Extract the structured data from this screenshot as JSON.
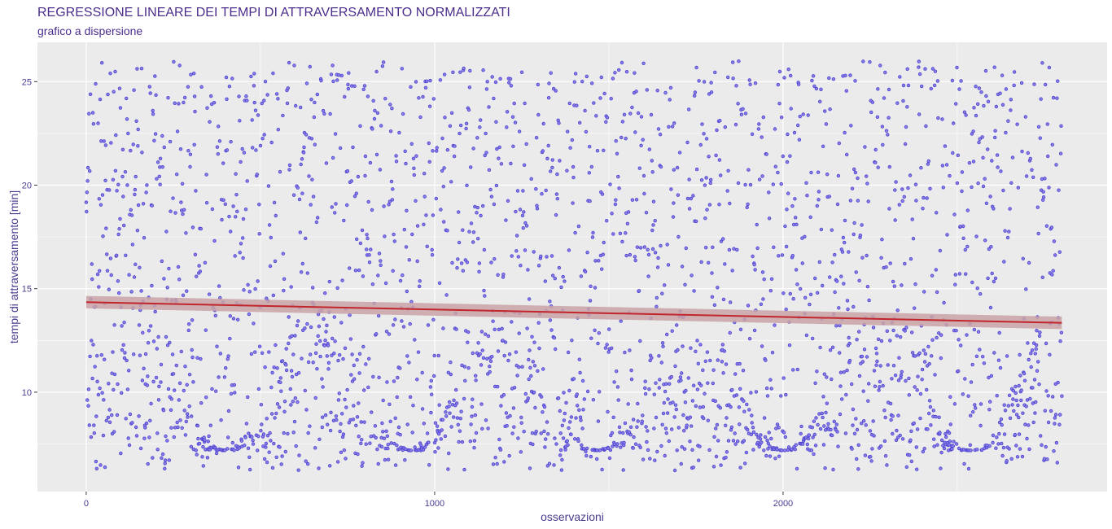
{
  "chart_data": {
    "type": "scatter",
    "title": "REGRESSIONE LINEARE DEI TEMPI DI ATTRAVERSAMENTO NORMALIZZATI",
    "subtitle": "grafico a dispersione",
    "xlabel": "osservazioni",
    "ylabel": "tempi di attraversamento [min]",
    "xlim": [
      -140,
      2930
    ],
    "ylim": [
      5.2,
      26.9
    ],
    "x_ticks": [
      0,
      1000,
      2000
    ],
    "x_tick_labels": [
      "0",
      "1000",
      "2000"
    ],
    "y_ticks": [
      10,
      15,
      20,
      25
    ],
    "y_tick_labels": [
      "10",
      "15",
      "20",
      "25"
    ],
    "grid": true,
    "legend": "none",
    "colors": {
      "panel": "#ebebeb",
      "grid": "#ffffff",
      "points": "#4b3fd1",
      "regression_line": "#c0262c",
      "confidence_band": "#c9a3a6",
      "text": "#4b3b8f"
    },
    "series": [
      {
        "kind": "points",
        "count": 2800,
        "x": [
          0,
          2800
        ],
        "y": [
          6.2,
          26.0
        ]
      },
      {
        "kind": "regression_line",
        "x": [
          0,
          2800
        ],
        "y": [
          14.35,
          13.35
        ],
        "confidence_band": {
          "lower": [
            14.05,
            13.05
          ],
          "upper": [
            14.65,
            13.65
          ]
        }
      }
    ]
  }
}
